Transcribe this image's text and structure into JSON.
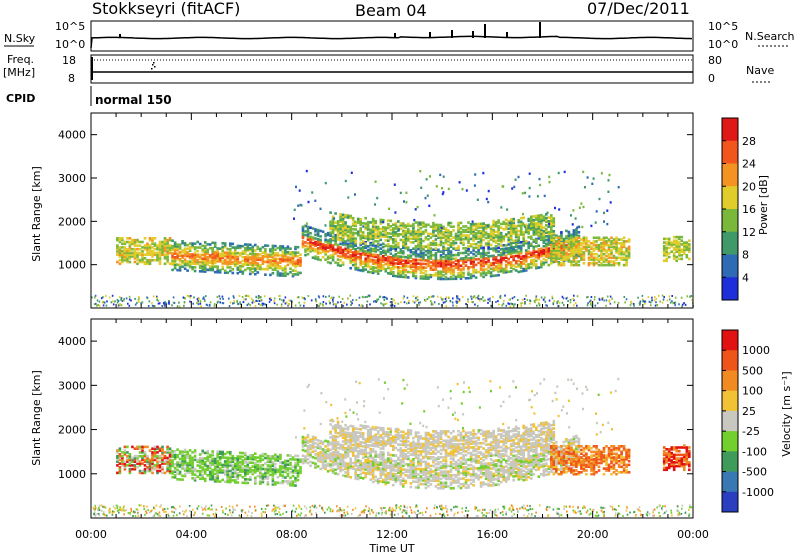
{
  "header": {
    "station": "Stokkseyri (fitACF)",
    "beam": "Beam 04",
    "date": "07/Dec/2011"
  },
  "top_panels": {
    "nsky_label": "N.Sky",
    "nsky_ticks": [
      "10^5",
      "10^0"
    ],
    "nsearch_label": "N.Search",
    "nsearch_ticks": [
      "10^5",
      "10^0"
    ],
    "freq_label": "Freq.",
    "freq_unit": "[MHz]",
    "freq_ticks": [
      "18",
      "8"
    ],
    "nave_label": "Nave",
    "nave_ticks": [
      "80",
      "0"
    ],
    "cpid_label": "CPID",
    "cpid_value": "normal 150"
  },
  "chart_data": [
    {
      "type": "heatmap",
      "ylabel": "Slant Range [km]",
      "y_ticks": [
        "1000",
        "2000",
        "3000",
        "4000"
      ],
      "ylim": [
        0,
        4500
      ],
      "xlim_hours": [
        0,
        24
      ],
      "colorbar": {
        "label": "Power [dB]",
        "ticks": [
          "4",
          "8",
          "12",
          "16",
          "20",
          "24",
          "28"
        ],
        "colors": [
          "#1d2fd8",
          "#2f6ab4",
          "#3f9968",
          "#7ab83c",
          "#e0cc2a",
          "#f59322",
          "#f2561c",
          "#e01818"
        ]
      }
    },
    {
      "type": "heatmap",
      "ylabel": "Slant Range [km]",
      "y_ticks": [
        "1000",
        "2000",
        "3000",
        "4000"
      ],
      "ylim": [
        0,
        4500
      ],
      "xlim_hours": [
        0,
        24
      ],
      "colorbar": {
        "label": "Velocity [m s⁻¹]",
        "ticks": [
          "1000",
          "500",
          "100",
          "25",
          "-25",
          "-100",
          "-500",
          "-1000"
        ],
        "colors": [
          "#2a3fbf",
          "#3a78b4",
          "#3f9b5a",
          "#72cf2e",
          "#c8c8c0",
          "#f2c235",
          "#f28a22",
          "#ef5418",
          "#e21212"
        ]
      }
    }
  ],
  "x_axis": {
    "ticks": [
      "00:00",
      "04:00",
      "08:00",
      "12:00",
      "16:00",
      "20:00",
      "00:00"
    ],
    "label": "Time UT"
  }
}
